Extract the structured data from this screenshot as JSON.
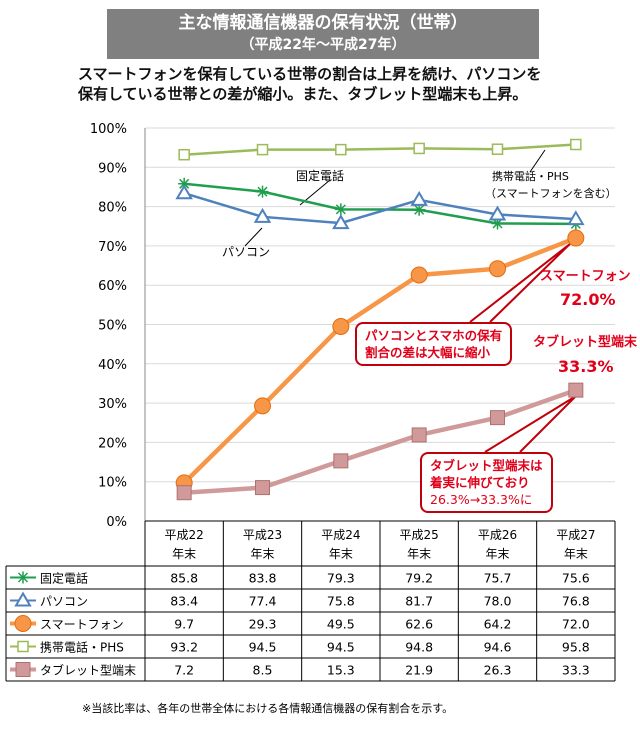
{
  "header": {
    "title": "主な情報通信機器の保有状況（世帯）",
    "subtitle": "（平成22年～平成27年）"
  },
  "summary": [
    "スマートフォンを保有している世帯の割合は上昇を続け、パソコンを",
    "保有している世帯との差が縮小。また、タブレット型端末も上昇。"
  ],
  "chart_data": {
    "type": "line",
    "categories": [
      [
        "平成22",
        "年末"
      ],
      [
        "平成23",
        "年末"
      ],
      [
        "平成24",
        "年末"
      ],
      [
        "平成25",
        "年末"
      ],
      [
        "平成26",
        "年末"
      ],
      [
        "平成27",
        "年末"
      ]
    ],
    "ylim": [
      0,
      100
    ],
    "yticks": [
      "0%",
      "10%",
      "20%",
      "30%",
      "40%",
      "50%",
      "60%",
      "70%",
      "80%",
      "90%",
      "100%"
    ],
    "grid": true,
    "series": [
      {
        "name": "固定電話",
        "values": [
          85.8,
          83.8,
          79.3,
          79.2,
          75.7,
          75.6
        ],
        "color": "#1f9e4d",
        "marker": "asterisk"
      },
      {
        "name": "パソコン",
        "values": [
          83.4,
          77.4,
          75.8,
          81.7,
          78.0,
          76.8
        ],
        "color": "#4f81bd",
        "marker": "triangle"
      },
      {
        "name": "スマートフォン",
        "values": [
          9.7,
          29.3,
          49.5,
          62.6,
          64.2,
          72.0
        ],
        "color": "#f79646",
        "marker": "circle"
      },
      {
        "name": "携帯電話・PHS",
        "values": [
          93.2,
          94.5,
          94.5,
          94.8,
          94.6,
          95.8
        ],
        "color": "#9bbb59",
        "marker": "square-open"
      },
      {
        "name": "タブレット型端末",
        "values": [
          7.2,
          8.5,
          15.3,
          21.9,
          26.3,
          33.3
        ],
        "color": "#d09a9a",
        "marker": "square"
      }
    ],
    "labels": {
      "fixed": "固定電話",
      "pc": "パソコン",
      "mobile1": "携帯電話・PHS",
      "mobile2": "（スマートフォンを含む）",
      "smart": "スマートフォン",
      "smart_val": "72.0%",
      "tablet": "タブレット型端末",
      "tablet_val": "33.3%"
    },
    "callouts": {
      "gap": [
        "パソコンとスマホの保有",
        "割合の差は大幅に縮小"
      ],
      "tablet": [
        "タブレット型端末は",
        "着実に伸びており",
        "26.3%→33.3%に"
      ]
    },
    "table_values": [
      [
        "85.8",
        "83.8",
        "79.3",
        "79.2",
        "75.7",
        "75.6"
      ],
      [
        "83.4",
        "77.4",
        "75.8",
        "81.7",
        "78.0",
        "76.8"
      ],
      [
        "9.7",
        "29.3",
        "49.5",
        "62.6",
        "64.2",
        "72.0"
      ],
      [
        "93.2",
        "94.5",
        "94.5",
        "94.8",
        "94.6",
        "95.8"
      ],
      [
        "7.2",
        "8.5",
        "15.3",
        "21.9",
        "26.3",
        "33.3"
      ]
    ]
  },
  "note": "※当該比率は、各年の世帯全体における各情報通信機器の保有割合を示す。"
}
